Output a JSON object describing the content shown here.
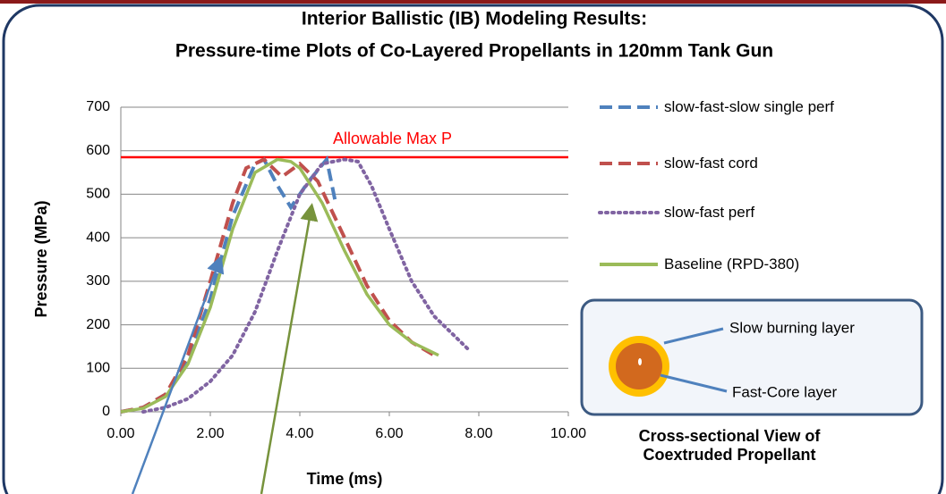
{
  "chart_data": {
    "type": "line",
    "title": "Interior Ballistic (IB) Modeling Results:",
    "subtitle": "Pressure-time Plots of Co-Layered Propellants in 120mm Tank Gun",
    "x_label": "Time (ms)",
    "y_label": "Pressure (MPa)",
    "xlim": [
      0,
      10
    ],
    "ylim": [
      0,
      700
    ],
    "xticks": [
      {
        "value": 0,
        "label": "0.00"
      },
      {
        "value": 2,
        "label": "2.00"
      },
      {
        "value": 4,
        "label": "4.00"
      },
      {
        "value": 6,
        "label": "6.00"
      },
      {
        "value": 8,
        "label": "8.00"
      },
      {
        "value": 10,
        "label": "10.00"
      }
    ],
    "yticks": [
      0,
      100,
      200,
      300,
      400,
      500,
      600,
      700
    ],
    "grid": true,
    "max_line": {
      "label": "Allowable Max P",
      "value": 585,
      "color": "#ff0000"
    },
    "series": [
      {
        "name": "slow-fast-slow single perf",
        "color": "#4f81bd",
        "line_style": "dashed",
        "x": [
          0,
          0.5,
          1,
          1.5,
          2,
          2.5,
          3,
          3.2,
          3.5,
          3.8,
          4.2,
          4.6,
          4.8
        ],
        "values": [
          0,
          10,
          40,
          120,
          260,
          450,
          570,
          580,
          520,
          470,
          530,
          580,
          480
        ]
      },
      {
        "name": "slow-fast cord",
        "color": "#c0504d",
        "line_style": "dashed",
        "x": [
          0,
          0.5,
          1,
          1.5,
          2,
          2.5,
          2.8,
          3.2,
          3.6,
          4,
          4.4,
          5,
          5.5,
          6,
          6.5,
          7
        ],
        "values": [
          0,
          10,
          40,
          130,
          300,
          480,
          560,
          580,
          540,
          570,
          530,
          400,
          290,
          210,
          160,
          130
        ]
      },
      {
        "name": "slow-fast perf",
        "color": "#8064a2",
        "line_style": "dotted",
        "x": [
          0.5,
          1,
          1.5,
          2,
          2.5,
          3,
          3.5,
          4,
          4.5,
          5,
          5.3,
          5.6,
          6,
          6.5,
          7,
          7.5,
          7.8
        ],
        "values": [
          0,
          10,
          30,
          70,
          130,
          230,
          370,
          500,
          570,
          580,
          575,
          520,
          420,
          300,
          220,
          170,
          140
        ]
      },
      {
        "name": "Baseline (RPD-380)",
        "color": "#9bbb59",
        "line_style": "solid",
        "x": [
          0,
          0.5,
          1,
          1.5,
          2,
          2.5,
          3,
          3.5,
          3.8,
          4,
          4.5,
          5,
          5.5,
          6,
          6.5,
          7.1
        ],
        "values": [
          0,
          8,
          35,
          110,
          240,
          420,
          550,
          580,
          575,
          560,
          480,
          370,
          270,
          200,
          160,
          130
        ]
      }
    ],
    "inset": {
      "caption": "Cross-sectional View of Coextruded Propellant",
      "labels": [
        "Slow burning layer",
        "Fast-Core layer"
      ]
    }
  }
}
